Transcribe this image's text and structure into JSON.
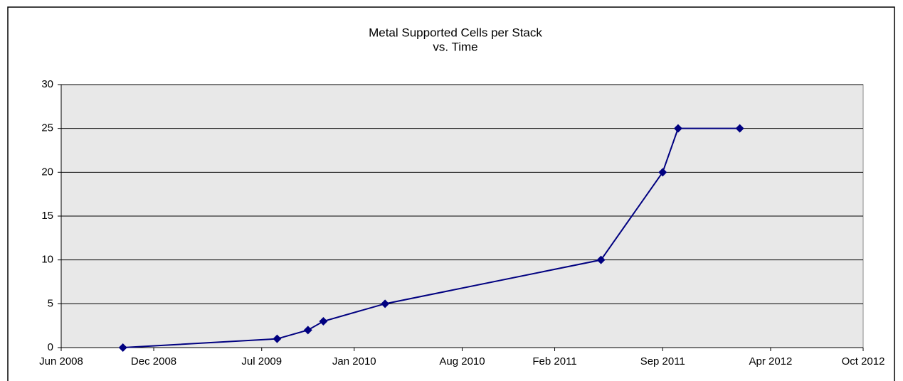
{
  "chart_data": {
    "type": "line",
    "title": [
      "Metal Supported Cells per Stack",
      "vs. Time"
    ],
    "x": [
      "2008-10",
      "2009-08",
      "2009-10",
      "2009-11",
      "2010-03",
      "2011-05",
      "2011-09",
      "2011-10",
      "2012-02"
    ],
    "series": [
      {
        "name": "Cells per Stack",
        "color": "#000080",
        "values": [
          0,
          1,
          2,
          3,
          5,
          10,
          20,
          25,
          25
        ]
      }
    ],
    "xlim": [
      "2008-06",
      "2012-10"
    ],
    "xticks": [
      {
        "value": "2008-06",
        "label": "Jun 2008"
      },
      {
        "value": "2008-12",
        "label": "Dec 2008"
      },
      {
        "value": "2009-07",
        "label": "Jul 2009"
      },
      {
        "value": "2010-01",
        "label": "Jan 2010"
      },
      {
        "value": "2010-08",
        "label": "Aug 2010"
      },
      {
        "value": "2011-02",
        "label": "Feb 2011"
      },
      {
        "value": "2011-09",
        "label": "Sep 2011"
      },
      {
        "value": "2012-04",
        "label": "Apr 2012"
      },
      {
        "value": "2012-10",
        "label": "Oct 2012"
      }
    ],
    "ylim": [
      0,
      30
    ],
    "yticks": [
      0,
      5,
      10,
      15,
      20,
      25,
      30
    ],
    "grid": true
  }
}
